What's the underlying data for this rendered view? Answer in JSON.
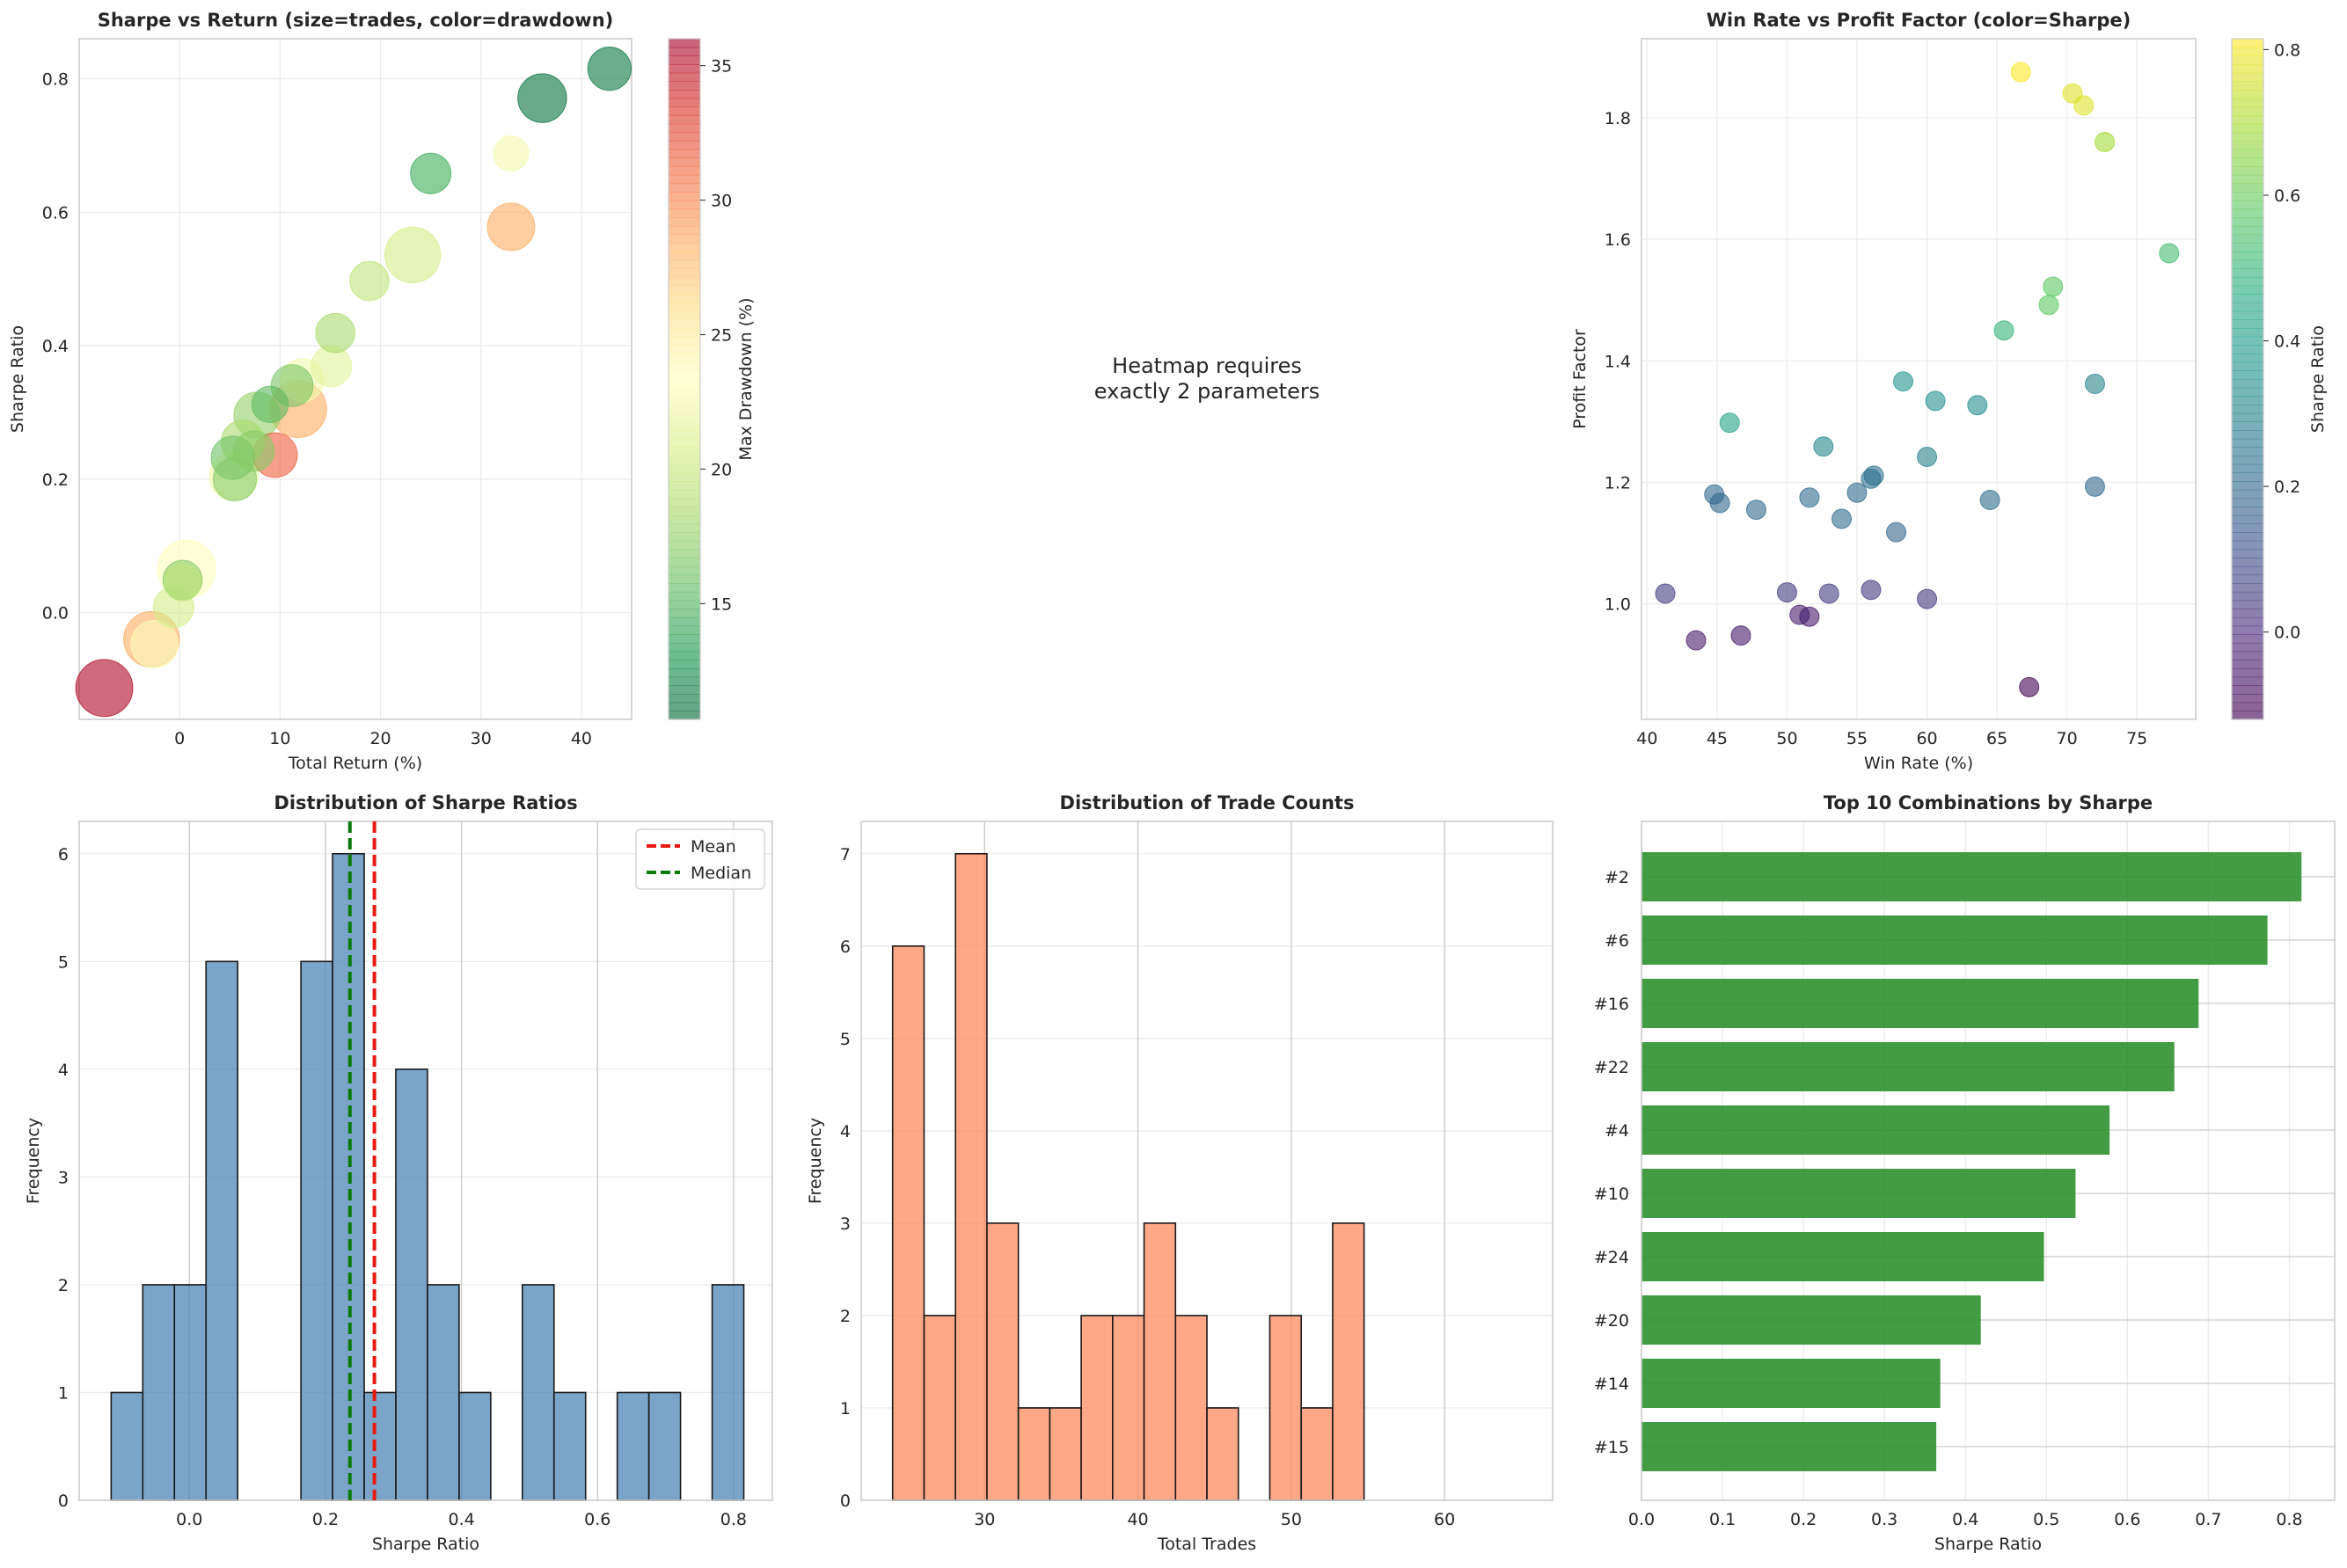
{
  "chart_data": [
    {
      "id": "sharpe_return",
      "type": "scatter",
      "title": "Sharpe vs Return (size=trades, color=drawdown)",
      "xlabel": "Total Return (%)",
      "ylabel": "Sharpe Ratio",
      "xlim": [
        -10,
        45
      ],
      "ylim": [
        -0.16,
        0.86
      ],
      "xticks": [
        0,
        10,
        20,
        30,
        40
      ],
      "yticks": [
        0.0,
        0.2,
        0.4,
        0.6,
        0.8
      ],
      "colorbar": {
        "label": "Max Drawdown (%)",
        "range": [
          10.7,
          36
        ],
        "ticks": [
          15,
          20,
          25,
          30,
          35
        ],
        "colormap": "RdYlGn_r"
      },
      "points": [
        {
          "x": 42.8,
          "y": 0.815,
          "trades": 40,
          "drawdown": 11.5
        },
        {
          "x": 36.1,
          "y": 0.771,
          "trades": 48,
          "drawdown": 11.2
        },
        {
          "x": 33.0,
          "y": 0.688,
          "trades": 28,
          "drawdown": 22.5
        },
        {
          "x": 25.0,
          "y": 0.658,
          "trades": 36,
          "drawdown": 14.5
        },
        {
          "x": 33.0,
          "y": 0.578,
          "trades": 46,
          "drawdown": 28.5
        },
        {
          "x": 23.2,
          "y": 0.536,
          "trades": 58,
          "drawdown": 20.5
        },
        {
          "x": 18.9,
          "y": 0.497,
          "trades": 34,
          "drawdown": 19.5
        },
        {
          "x": 15.5,
          "y": 0.419,
          "trades": 34,
          "drawdown": 18.5
        },
        {
          "x": 15.1,
          "y": 0.369,
          "trades": 36,
          "drawdown": 21.5
        },
        {
          "x": 12.2,
          "y": 0.348,
          "trades": 40,
          "drawdown": 22.5
        },
        {
          "x": 11.2,
          "y": 0.34,
          "trades": 38,
          "drawdown": 16.5
        },
        {
          "x": 9.0,
          "y": 0.312,
          "trades": 30,
          "drawdown": 15.5
        },
        {
          "x": 11.8,
          "y": 0.305,
          "trades": 60,
          "drawdown": 28.5
        },
        {
          "x": 7.7,
          "y": 0.296,
          "trades": 44,
          "drawdown": 17.5
        },
        {
          "x": 6.3,
          "y": 0.256,
          "trades": 40,
          "drawdown": 18.5
        },
        {
          "x": 7.4,
          "y": 0.242,
          "trades": 36,
          "drawdown": 17.0
        },
        {
          "x": 9.5,
          "y": 0.236,
          "trades": 42,
          "drawdown": 31.5
        },
        {
          "x": 5.3,
          "y": 0.232,
          "trades": 40,
          "drawdown": 16.0
        },
        {
          "x": 5.4,
          "y": 0.204,
          "trades": 48,
          "drawdown": 22.5
        },
        {
          "x": 5.5,
          "y": 0.2,
          "trades": 40,
          "drawdown": 17.0
        },
        {
          "x": 0.7,
          "y": 0.065,
          "trades": 62,
          "drawdown": 23.5
        },
        {
          "x": 0.3,
          "y": 0.049,
          "trades": 34,
          "drawdown": 17.0
        },
        {
          "x": 0.3,
          "y": 0.045,
          "trades": 30,
          "drawdown": 19.5
        },
        {
          "x": -0.6,
          "y": 0.008,
          "trades": 36,
          "drawdown": 20.5
        },
        {
          "x": -2.8,
          "y": -0.04,
          "trades": 58,
          "drawdown": 28.5
        },
        {
          "x": -2.5,
          "y": -0.047,
          "trades": 46,
          "drawdown": 23.0
        },
        {
          "x": -7.5,
          "y": -0.113,
          "trades": 60,
          "drawdown": 35.5
        }
      ]
    },
    {
      "id": "heatmap_placeholder",
      "type": "table",
      "message": [
        "Heatmap requires",
        "exactly 2 parameters"
      ]
    },
    {
      "id": "winrate_pf",
      "type": "scatter",
      "title": "Win Rate vs Profit Factor (color=Sharpe)",
      "xlabel": "Win Rate (%)",
      "ylabel": "Profit Factor",
      "xlim": [
        39.6,
        79.2
      ],
      "ylim": [
        0.81,
        1.93
      ],
      "xticks": [
        40,
        45,
        50,
        55,
        60,
        65,
        70,
        75
      ],
      "yticks": [
        1.0,
        1.2,
        1.4,
        1.6,
        1.8
      ],
      "colorbar": {
        "label": "Sharpe Ratio",
        "range": [
          -0.12,
          0.815
        ],
        "ticks": [
          0.0,
          0.2,
          0.4,
          0.6,
          0.8
        ],
        "colormap": "viridis"
      },
      "points": [
        {
          "x": 66.7,
          "y": 1.875,
          "sharpe": 0.815
        },
        {
          "x": 70.4,
          "y": 1.84,
          "sharpe": 0.77
        },
        {
          "x": 71.2,
          "y": 1.82,
          "sharpe": 0.77
        },
        {
          "x": 72.7,
          "y": 1.76,
          "sharpe": 0.69
        },
        {
          "x": 77.3,
          "y": 1.577,
          "sharpe": 0.53
        },
        {
          "x": 69.0,
          "y": 1.522,
          "sharpe": 0.58
        },
        {
          "x": 68.7,
          "y": 1.492,
          "sharpe": 0.58
        },
        {
          "x": 65.5,
          "y": 1.45,
          "sharpe": 0.5
        },
        {
          "x": 58.3,
          "y": 1.366,
          "sharpe": 0.37
        },
        {
          "x": 72.0,
          "y": 1.362,
          "sharpe": 0.3
        },
        {
          "x": 60.6,
          "y": 1.334,
          "sharpe": 0.35
        },
        {
          "x": 63.6,
          "y": 1.327,
          "sharpe": 0.34
        },
        {
          "x": 45.9,
          "y": 1.298,
          "sharpe": 0.42
        },
        {
          "x": 52.6,
          "y": 1.259,
          "sharpe": 0.31
        },
        {
          "x": 60.0,
          "y": 1.242,
          "sharpe": 0.3
        },
        {
          "x": 56.2,
          "y": 1.211,
          "sharpe": 0.24
        },
        {
          "x": 56.0,
          "y": 1.206,
          "sharpe": 0.23
        },
        {
          "x": 72.0,
          "y": 1.193,
          "sharpe": 0.2
        },
        {
          "x": 55.0,
          "y": 1.183,
          "sharpe": 0.21
        },
        {
          "x": 44.8,
          "y": 1.18,
          "sharpe": 0.2
        },
        {
          "x": 51.6,
          "y": 1.175,
          "sharpe": 0.21
        },
        {
          "x": 64.5,
          "y": 1.171,
          "sharpe": 0.22
        },
        {
          "x": 45.2,
          "y": 1.166,
          "sharpe": 0.2
        },
        {
          "x": 47.8,
          "y": 1.155,
          "sharpe": 0.2
        },
        {
          "x": 53.9,
          "y": 1.14,
          "sharpe": 0.21
        },
        {
          "x": 57.8,
          "y": 1.118,
          "sharpe": 0.19
        },
        {
          "x": 41.3,
          "y": 1.017,
          "sharpe": 0.05
        },
        {
          "x": 56.0,
          "y": 1.023,
          "sharpe": 0.04
        },
        {
          "x": 50.0,
          "y": 1.019,
          "sharpe": 0.05
        },
        {
          "x": 53.0,
          "y": 1.017,
          "sharpe": 0.05
        },
        {
          "x": 60.0,
          "y": 1.008,
          "sharpe": 0.04
        },
        {
          "x": 50.9,
          "y": 0.982,
          "sharpe": -0.04
        },
        {
          "x": 51.6,
          "y": 0.979,
          "sharpe": -0.05
        },
        {
          "x": 46.7,
          "y": 0.948,
          "sharpe": -0.05
        },
        {
          "x": 43.5,
          "y": 0.94,
          "sharpe": -0.04
        },
        {
          "x": 67.3,
          "y": 0.863,
          "sharpe": -0.11
        }
      ]
    },
    {
      "id": "sharpe_hist",
      "type": "bar",
      "title": "Distribution of Sharpe Ratios",
      "xlabel": "Sharpe Ratio",
      "ylabel": "Frequency",
      "xlim": [
        -0.162,
        0.857
      ],
      "ylim": [
        0,
        6.3
      ],
      "xticks": [
        0.0,
        0.2,
        0.4,
        0.6,
        0.8
      ],
      "yticks": [
        0,
        1,
        2,
        3,
        4,
        5,
        6
      ],
      "bin_start": -0.115,
      "bin_width": 0.0465,
      "counts": [
        1,
        2,
        2,
        5,
        0,
        0,
        5,
        6,
        1,
        4,
        2,
        1,
        0,
        2,
        1,
        0,
        1,
        1,
        0,
        2
      ],
      "mean": 0.272,
      "median": 0.236,
      "legend": [
        "Mean",
        "Median"
      ],
      "color": "#4682b4"
    },
    {
      "id": "trades_hist",
      "type": "bar",
      "title": "Distribution of Trade Counts",
      "xlabel": "Total Trades",
      "ylabel": "Frequency",
      "xlim": [
        21.95,
        67.05
      ],
      "ylim": [
        0,
        7.35
      ],
      "xticks": [
        30,
        40,
        50,
        60
      ],
      "yticks": [
        0,
        1,
        2,
        3,
        4,
        5,
        6,
        7
      ],
      "bin_start": 24,
      "bin_width": 2.05,
      "counts": [
        6,
        2,
        7,
        3,
        1,
        1,
        2,
        2,
        3,
        2,
        1,
        0,
        2,
        1,
        3
      ],
      "color": "#ff7f50"
    },
    {
      "id": "top10",
      "type": "bar",
      "orientation": "horizontal",
      "title": "Top 10 Combinations by Sharpe",
      "xlabel": "Sharpe Ratio",
      "xlim": [
        0,
        0.856
      ],
      "xticks": [
        0.0,
        0.1,
        0.2,
        0.3,
        0.4,
        0.5,
        0.6,
        0.7,
        0.8
      ],
      "categories": [
        "#2",
        "#6",
        "#16",
        "#22",
        "#4",
        "#10",
        "#24",
        "#20",
        "#14",
        "#15"
      ],
      "values": [
        0.815,
        0.773,
        0.688,
        0.658,
        0.578,
        0.536,
        0.497,
        0.419,
        0.369,
        0.364
      ],
      "color": "#228b22"
    }
  ]
}
